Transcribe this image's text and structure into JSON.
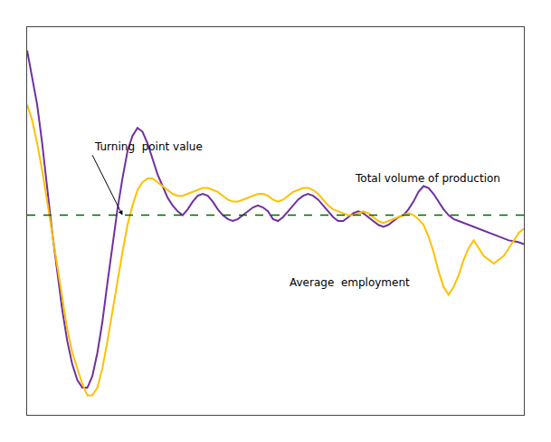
{
  "chart_data": {
    "type": "line",
    "series": [
      {
        "color": "#7030A0",
        "values": [
          4.2,
          3.5,
          2.8,
          1.8,
          0.6,
          -0.5,
          -1.5,
          -2.5,
          -3.3,
          -3.9,
          -4.3,
          -4.5,
          -4.5,
          -4.2,
          -3.6,
          -2.8,
          -1.8,
          -0.8,
          0.1,
          0.9,
          1.6,
          2.0,
          2.2,
          2.1,
          1.8,
          1.4,
          1.0,
          0.7,
          0.4,
          0.2,
          0.05,
          -0.05,
          0.1,
          0.3,
          0.45,
          0.5,
          0.45,
          0.3,
          0.1,
          -0.05,
          -0.15,
          -0.2,
          -0.15,
          -0.05,
          0.05,
          0.15,
          0.2,
          0.15,
          0.05,
          -0.15,
          -0.2,
          -0.1,
          0.05,
          0.2,
          0.35,
          0.45,
          0.5,
          0.45,
          0.35,
          0.2,
          0.05,
          -0.1,
          -0.2,
          -0.2,
          -0.1,
          0.0,
          0.05,
          0.0,
          -0.1,
          -0.2,
          -0.3,
          -0.35,
          -0.3,
          -0.2,
          -0.1,
          -0.05,
          0.1,
          0.3,
          0.55,
          0.7,
          0.65,
          0.5,
          0.3,
          0.1,
          -0.05,
          -0.15,
          -0.2,
          -0.25,
          -0.3,
          -0.35,
          -0.4,
          -0.45,
          -0.5,
          -0.55,
          -0.6,
          -0.65,
          -0.7,
          -0.72,
          -0.75,
          -0.8
        ]
      },
      {
        "color": "#FFC000",
        "values": [
          2.8,
          2.4,
          1.8,
          1.1,
          0.3,
          -0.5,
          -1.3,
          -2.2,
          -3.0,
          -3.6,
          -4.0,
          -4.4,
          -4.7,
          -4.7,
          -4.5,
          -4.0,
          -3.3,
          -2.5,
          -1.7,
          -1.0,
          -0.3,
          0.2,
          0.6,
          0.8,
          0.9,
          0.9,
          0.8,
          0.7,
          0.6,
          0.5,
          0.45,
          0.45,
          0.5,
          0.55,
          0.6,
          0.65,
          0.65,
          0.6,
          0.55,
          0.45,
          0.35,
          0.3,
          0.3,
          0.35,
          0.4,
          0.45,
          0.5,
          0.5,
          0.45,
          0.35,
          0.3,
          0.35,
          0.45,
          0.55,
          0.6,
          0.65,
          0.65,
          0.6,
          0.5,
          0.35,
          0.2,
          0.1,
          0.05,
          0.0,
          -0.05,
          -0.05,
          0.0,
          0.05,
          0.0,
          -0.1,
          -0.2,
          -0.25,
          -0.2,
          -0.15,
          -0.1,
          -0.05,
          0.0,
          -0.05,
          -0.15,
          -0.3,
          -0.6,
          -1.0,
          -1.5,
          -1.9,
          -2.1,
          -1.9,
          -1.6,
          -1.2,
          -0.9,
          -0.7,
          -0.9,
          -1.1,
          -1.2,
          -1.3,
          -1.2,
          -1.1,
          -0.9,
          -0.7,
          -0.5,
          -0.4
        ]
      }
    ],
    "xlim": [
      0,
      99
    ],
    "ylim": [
      -5.2,
      4.8
    ],
    "xticks": [],
    "yticks": [],
    "grid": false,
    "tick_labels": false,
    "hlines": [
      {
        "value": -0.05,
        "color": "#006400",
        "line_style": "dashed"
      }
    ],
    "annotations": [
      {
        "text": "Turning  point value",
        "x": 13,
        "y": 1.5,
        "arrow_x": 19,
        "arrow_y": -0.05
      },
      {
        "text": "Total volume of production",
        "x": 65,
        "y": 0.9
      },
      {
        "text": "Average  employment",
        "x": 52,
        "y": -1.8
      }
    ]
  }
}
